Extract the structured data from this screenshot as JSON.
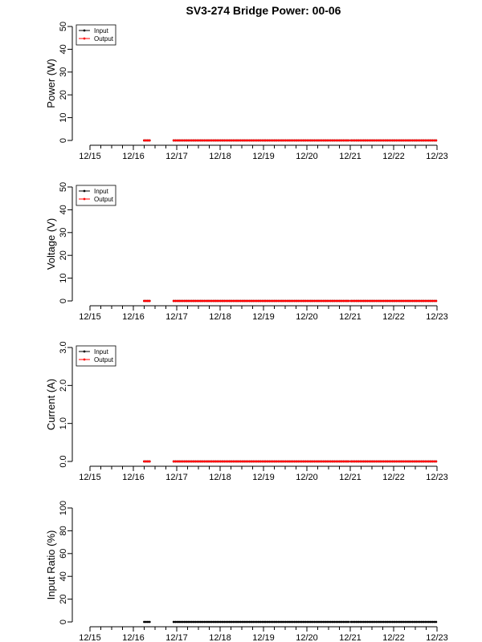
{
  "title": "SV3-274 Bridge Power: 00-06",
  "colors": {
    "input": "#000000",
    "output": "#ff0000"
  },
  "chart_data": [
    {
      "type": "line",
      "id": "power",
      "title": "SV3-274 Bridge Power: 00-06",
      "ylabel": "Power (W)",
      "ylim": [
        0,
        50
      ],
      "yticks": [
        "0",
        "10",
        "20",
        "30",
        "40",
        "50"
      ],
      "x_tick_labels": [
        "12/15",
        "12/16",
        "12/17",
        "12/18",
        "12/19",
        "12/20",
        "12/21",
        "12/22",
        "12/23"
      ],
      "xlim": [
        0,
        8
      ],
      "legend": {
        "position": "top-left",
        "entries": [
          "Input",
          "Output"
        ]
      },
      "series": [
        {
          "name": "Input",
          "color": "#000000",
          "segments": [
            [
              1.25,
              1.38
            ],
            [
              1.93,
              4.02
            ],
            [
              4.05,
              5.98
            ],
            [
              6.02,
              8.0
            ]
          ],
          "value": 0
        },
        {
          "name": "Output",
          "color": "#ff0000",
          "segments": [
            [
              1.25,
              1.38
            ],
            [
              1.93,
              4.02
            ],
            [
              4.05,
              5.98
            ],
            [
              6.02,
              8.0
            ]
          ],
          "value": 0
        }
      ]
    },
    {
      "type": "line",
      "id": "voltage",
      "ylabel": "Voltage (V)",
      "ylim": [
        0,
        50
      ],
      "yticks": [
        "0",
        "10",
        "20",
        "30",
        "40",
        "50"
      ],
      "x_tick_labels": [
        "12/15",
        "12/16",
        "12/17",
        "12/18",
        "12/19",
        "12/20",
        "12/21",
        "12/22",
        "12/23"
      ],
      "xlim": [
        0,
        8
      ],
      "legend": {
        "position": "top-left",
        "entries": [
          "Input",
          "Output"
        ]
      },
      "series": [
        {
          "name": "Input",
          "color": "#000000",
          "segments": [
            [
              1.25,
              1.38
            ],
            [
              1.93,
              4.02
            ],
            [
              4.05,
              5.98
            ],
            [
              6.02,
              8.0
            ]
          ],
          "value": 0
        },
        {
          "name": "Output",
          "color": "#ff0000",
          "segments": [
            [
              1.25,
              1.38
            ],
            [
              1.93,
              4.02
            ],
            [
              4.05,
              5.98
            ],
            [
              6.02,
              8.0
            ]
          ],
          "value": 0
        }
      ]
    },
    {
      "type": "line",
      "id": "current",
      "ylabel": "Current (A)",
      "ylim": [
        0,
        3
      ],
      "yticks": [
        "0.0",
        "1.0",
        "2.0",
        "3.0"
      ],
      "x_tick_labels": [
        "12/15",
        "12/16",
        "12/17",
        "12/18",
        "12/19",
        "12/20",
        "12/21",
        "12/22",
        "12/23"
      ],
      "xlim": [
        0,
        8
      ],
      "legend": {
        "position": "top-left",
        "entries": [
          "Input",
          "Output"
        ]
      },
      "series": [
        {
          "name": "Input",
          "color": "#000000",
          "segments": [
            [
              1.25,
              1.38
            ],
            [
              1.93,
              4.02
            ],
            [
              4.05,
              5.98
            ],
            [
              6.02,
              8.0
            ]
          ],
          "value": 0
        },
        {
          "name": "Output",
          "color": "#ff0000",
          "segments": [
            [
              1.25,
              1.38
            ],
            [
              1.93,
              4.02
            ],
            [
              4.05,
              5.98
            ],
            [
              6.02,
              8.0
            ]
          ],
          "value": 0
        }
      ]
    },
    {
      "type": "line",
      "id": "ratio",
      "ylabel": "Input Ratio (%)",
      "ylim": [
        0,
        100
      ],
      "yticks": [
        "0",
        "20",
        "40",
        "60",
        "80",
        "100"
      ],
      "x_tick_labels": [
        "12/15",
        "12/16",
        "12/17",
        "12/18",
        "12/19",
        "12/20",
        "12/21",
        "12/22",
        "12/23"
      ],
      "xlim": [
        0,
        8
      ],
      "legend": null,
      "series": [
        {
          "color": "#000000",
          "segments": [
            [
              1.25,
              1.38
            ],
            [
              1.93,
              4.02
            ],
            [
              4.05,
              5.98
            ],
            [
              6.02,
              8.0
            ]
          ],
          "value": 0
        }
      ]
    }
  ]
}
